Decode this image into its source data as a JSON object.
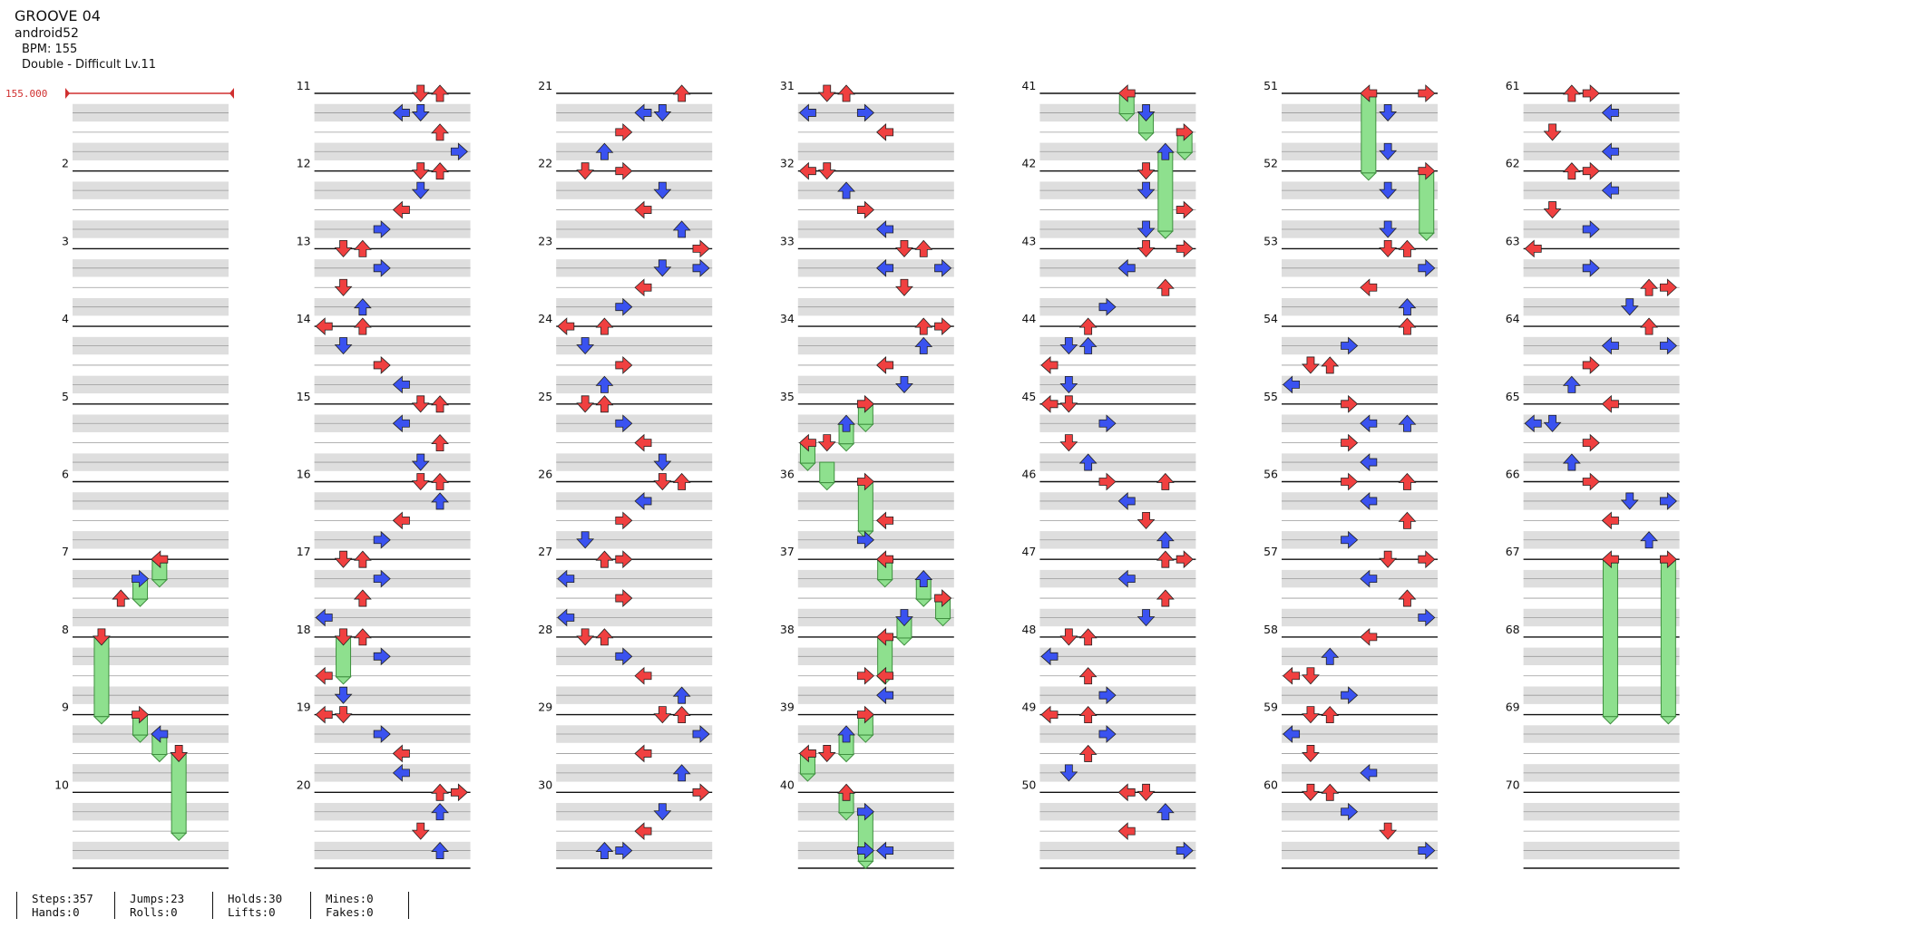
{
  "header": {
    "title": "GROOVE 04",
    "credit": "android52",
    "bpm": "BPM: 155",
    "difficulty": "Double - Difficult Lv.11"
  },
  "bpm_marker": "155.000",
  "measures_per_column": 10,
  "column_count": 7,
  "colors": {
    "red_arrow": "#f04040",
    "blue_arrow": "#3a52f0",
    "hold_fill": "#8ee08e",
    "band": "#dedede",
    "bpm_marker": "#d03030"
  },
  "arrow_icons": [
    "left-arrow-icon",
    "down-arrow-icon",
    "up-arrow-icon",
    "right-arrow-icon"
  ],
  "stats": [
    {
      "line1": "Steps:357",
      "line2": "Hands:0"
    },
    {
      "line1": "Jumps:23",
      "line2": "Rolls:0"
    },
    {
      "line1": "Holds:30",
      "line2": "Lifts:0"
    },
    {
      "line1": "Mines:0",
      "line2": "Fakes:0"
    }
  ],
  "notes": [
    {
      "m": 7,
      "b": 0,
      "l": 4
    },
    {
      "m": 7,
      "b": 1,
      "l": 3
    },
    {
      "m": 7,
      "b": 2,
      "l": 2
    },
    {
      "m": 8,
      "b": 0,
      "l": 1
    },
    {
      "m": 9,
      "b": 0,
      "l": 3
    },
    {
      "m": 9,
      "b": 1,
      "l": 4
    },
    {
      "m": 9,
      "b": 2,
      "l": 5
    },
    {
      "m": 11,
      "b": 0,
      "l": 5
    },
    {
      "m": 11,
      "b": 0,
      "l": 6
    },
    {
      "m": 11,
      "b": 1,
      "l": 4
    },
    {
      "m": 11,
      "b": 1,
      "l": 5
    },
    {
      "m": 11,
      "b": 2,
      "l": 6
    },
    {
      "m": 11,
      "b": 3,
      "l": 7
    },
    {
      "m": 12,
      "b": 0,
      "l": 5
    },
    {
      "m": 12,
      "b": 0,
      "l": 6
    },
    {
      "m": 12,
      "b": 1,
      "l": 5
    },
    {
      "m": 12,
      "b": 2,
      "l": 4
    },
    {
      "m": 12,
      "b": 3,
      "l": 3
    },
    {
      "m": 13,
      "b": 0,
      "l": 1
    },
    {
      "m": 13,
      "b": 0,
      "l": 2
    },
    {
      "m": 13,
      "b": 1,
      "l": 3
    },
    {
      "m": 13,
      "b": 2,
      "l": 1
    },
    {
      "m": 13,
      "b": 3,
      "l": 2
    },
    {
      "m": 14,
      "b": 0,
      "l": 0
    },
    {
      "m": 14,
      "b": 0,
      "l": 2
    },
    {
      "m": 14,
      "b": 1,
      "l": 1
    },
    {
      "m": 14,
      "b": 2,
      "l": 3
    },
    {
      "m": 14,
      "b": 3,
      "l": 4
    },
    {
      "m": 15,
      "b": 0,
      "l": 5
    },
    {
      "m": 15,
      "b": 0,
      "l": 6
    },
    {
      "m": 15,
      "b": 1,
      "l": 4
    },
    {
      "m": 15,
      "b": 2,
      "l": 6
    },
    {
      "m": 15,
      "b": 3,
      "l": 5
    },
    {
      "m": 16,
      "b": 0,
      "l": 5
    },
    {
      "m": 16,
      "b": 0,
      "l": 6
    },
    {
      "m": 16,
      "b": 1,
      "l": 6
    },
    {
      "m": 16,
      "b": 2,
      "l": 4
    },
    {
      "m": 16,
      "b": 3,
      "l": 3
    },
    {
      "m": 17,
      "b": 0,
      "l": 1
    },
    {
      "m": 17,
      "b": 0,
      "l": 2
    },
    {
      "m": 17,
      "b": 1,
      "l": 3
    },
    {
      "m": 17,
      "b": 2,
      "l": 2
    },
    {
      "m": 17,
      "b": 3,
      "l": 0
    },
    {
      "m": 18,
      "b": 0,
      "l": 1
    },
    {
      "m": 18,
      "b": 0,
      "l": 2
    },
    {
      "m": 18,
      "b": 1,
      "l": 3
    },
    {
      "m": 18,
      "b": 2,
      "l": 0
    },
    {
      "m": 18,
      "b": 3,
      "l": 1
    },
    {
      "m": 19,
      "b": 0,
      "l": 0
    },
    {
      "m": 19,
      "b": 0,
      "l": 1
    },
    {
      "m": 19,
      "b": 1,
      "l": 3
    },
    {
      "m": 19,
      "b": 2,
      "l": 4
    },
    {
      "m": 19,
      "b": 3,
      "l": 4
    },
    {
      "m": 20,
      "b": 0,
      "l": 6
    },
    {
      "m": 20,
      "b": 0,
      "l": 7
    },
    {
      "m": 20,
      "b": 1,
      "l": 6
    },
    {
      "m": 20,
      "b": 2,
      "l": 5
    },
    {
      "m": 20,
      "b": 3,
      "l": 6
    },
    {
      "m": 21,
      "b": 0,
      "l": 6
    },
    {
      "m": 21,
      "b": 1,
      "l": 4
    },
    {
      "m": 21,
      "b": 1,
      "l": 5
    },
    {
      "m": 21,
      "b": 2,
      "l": 3
    },
    {
      "m": 21,
      "b": 3,
      "l": 2
    },
    {
      "m": 22,
      "b": 0,
      "l": 1
    },
    {
      "m": 22,
      "b": 0,
      "l": 3
    },
    {
      "m": 22,
      "b": 1,
      "l": 5
    },
    {
      "m": 22,
      "b": 2,
      "l": 4
    },
    {
      "m": 22,
      "b": 3,
      "l": 6
    },
    {
      "m": 23,
      "b": 0,
      "l": 7
    },
    {
      "m": 23,
      "b": 1,
      "l": 5
    },
    {
      "m": 23,
      "b": 1,
      "l": 7
    },
    {
      "m": 23,
      "b": 2,
      "l": 4
    },
    {
      "m": 23,
      "b": 3,
      "l": 3
    },
    {
      "m": 24,
      "b": 0,
      "l": 0
    },
    {
      "m": 24,
      "b": 0,
      "l": 2
    },
    {
      "m": 24,
      "b": 1,
      "l": 1
    },
    {
      "m": 24,
      "b": 2,
      "l": 3
    },
    {
      "m": 24,
      "b": 3,
      "l": 2
    },
    {
      "m": 25,
      "b": 0,
      "l": 1
    },
    {
      "m": 25,
      "b": 0,
      "l": 2
    },
    {
      "m": 25,
      "b": 1,
      "l": 3
    },
    {
      "m": 25,
      "b": 2,
      "l": 4
    },
    {
      "m": 25,
      "b": 3,
      "l": 5
    },
    {
      "m": 26,
      "b": 0,
      "l": 5
    },
    {
      "m": 26,
      "b": 0,
      "l": 6
    },
    {
      "m": 26,
      "b": 1,
      "l": 4
    },
    {
      "m": 26,
      "b": 2,
      "l": 3
    },
    {
      "m": 26,
      "b": 3,
      "l": 1
    },
    {
      "m": 27,
      "b": 0,
      "l": 2
    },
    {
      "m": 27,
      "b": 0,
      "l": 3
    },
    {
      "m": 27,
      "b": 1,
      "l": 0
    },
    {
      "m": 27,
      "b": 2,
      "l": 3
    },
    {
      "m": 27,
      "b": 3,
      "l": 0
    },
    {
      "m": 28,
      "b": 0,
      "l": 1
    },
    {
      "m": 28,
      "b": 0,
      "l": 2
    },
    {
      "m": 28,
      "b": 1,
      "l": 3
    },
    {
      "m": 28,
      "b": 2,
      "l": 4
    },
    {
      "m": 28,
      "b": 3,
      "l": 6
    },
    {
      "m": 29,
      "b": 0,
      "l": 5
    },
    {
      "m": 29,
      "b": 0,
      "l": 6
    },
    {
      "m": 29,
      "b": 1,
      "l": 7
    },
    {
      "m": 29,
      "b": 2,
      "l": 4
    },
    {
      "m": 29,
      "b": 3,
      "l": 6
    },
    {
      "m": 30,
      "b": 0,
      "l": 7
    },
    {
      "m": 30,
      "b": 1,
      "l": 5
    },
    {
      "m": 30,
      "b": 2,
      "l": 4
    },
    {
      "m": 30,
      "b": 3,
      "l": 3
    },
    {
      "m": 30,
      "b": 3,
      "l": 2
    },
    {
      "m": 31,
      "b": 0,
      "l": 1
    },
    {
      "m": 31,
      "b": 0,
      "l": 2
    },
    {
      "m": 31,
      "b": 1,
      "l": 0
    },
    {
      "m": 31,
      "b": 1,
      "l": 3
    },
    {
      "m": 31,
      "b": 2,
      "l": 4
    },
    {
      "m": 32,
      "b": 0,
      "l": 0
    },
    {
      "m": 32,
      "b": 0,
      "l": 1
    },
    {
      "m": 32,
      "b": 1,
      "l": 2
    },
    {
      "m": 32,
      "b": 2,
      "l": 3
    },
    {
      "m": 32,
      "b": 3,
      "l": 4
    },
    {
      "m": 33,
      "b": 0,
      "l": 5
    },
    {
      "m": 33,
      "b": 0,
      "l": 6
    },
    {
      "m": 33,
      "b": 1,
      "l": 4
    },
    {
      "m": 33,
      "b": 1,
      "l": 7
    },
    {
      "m": 33,
      "b": 2,
      "l": 5
    },
    {
      "m": 34,
      "b": 0,
      "l": 6
    },
    {
      "m": 34,
      "b": 0,
      "l": 7
    },
    {
      "m": 34,
      "b": 1,
      "l": 6
    },
    {
      "m": 34,
      "b": 2,
      "l": 4
    },
    {
      "m": 34,
      "b": 3,
      "l": 5
    },
    {
      "m": 35,
      "b": 0,
      "l": 3
    },
    {
      "m": 35,
      "b": 1,
      "l": 2
    },
    {
      "m": 35,
      "b": 2,
      "l": 0
    },
    {
      "m": 35,
      "b": 2,
      "l": 1
    },
    {
      "m": 36,
      "b": 0,
      "l": 3
    },
    {
      "m": 36,
      "b": 2,
      "l": 4
    },
    {
      "m": 36,
      "b": 3,
      "l": 3
    },
    {
      "m": 37,
      "b": 0,
      "l": 4
    },
    {
      "m": 37,
      "b": 1,
      "l": 6
    },
    {
      "m": 37,
      "b": 2,
      "l": 7
    },
    {
      "m": 37,
      "b": 3,
      "l": 5
    },
    {
      "m": 38,
      "b": 0,
      "l": 4
    },
    {
      "m": 38,
      "b": 2,
      "l": 3
    },
    {
      "m": 38,
      "b": 2,
      "l": 4
    },
    {
      "m": 38,
      "b": 3,
      "l": 4
    },
    {
      "m": 39,
      "b": 0,
      "l": 3
    },
    {
      "m": 39,
      "b": 1,
      "l": 2
    },
    {
      "m": 39,
      "b": 2,
      "l": 0
    },
    {
      "m": 39,
      "b": 2,
      "l": 1
    },
    {
      "m": 40,
      "b": 0,
      "l": 2
    },
    {
      "m": 40,
      "b": 1,
      "l": 3
    },
    {
      "m": 40,
      "b": 3,
      "l": 4
    },
    {
      "m": 40,
      "b": 3,
      "l": 3
    },
    {
      "m": 41,
      "b": 0,
      "l": 4
    },
    {
      "m": 41,
      "b": 1,
      "l": 5
    },
    {
      "m": 41,
      "b": 2,
      "l": 7
    },
    {
      "m": 41,
      "b": 3,
      "l": 6
    },
    {
      "m": 42,
      "b": 0,
      "l": 5
    },
    {
      "m": 42,
      "b": 1,
      "l": 5
    },
    {
      "m": 42,
      "b": 2,
      "l": 7
    },
    {
      "m": 42,
      "b": 3,
      "l": 5
    },
    {
      "m": 43,
      "b": 0,
      "l": 5
    },
    {
      "m": 43,
      "b": 0,
      "l": 7
    },
    {
      "m": 43,
      "b": 1,
      "l": 4
    },
    {
      "m": 43,
      "b": 2,
      "l": 6
    },
    {
      "m": 43,
      "b": 3,
      "l": 3
    },
    {
      "m": 44,
      "b": 0,
      "l": 2
    },
    {
      "m": 44,
      "b": 1,
      "l": 1
    },
    {
      "m": 44,
      "b": 1,
      "l": 2
    },
    {
      "m": 44,
      "b": 2,
      "l": 0
    },
    {
      "m": 44,
      "b": 3,
      "l": 1
    },
    {
      "m": 45,
      "b": 0,
      "l": 0
    },
    {
      "m": 45,
      "b": 0,
      "l": 1
    },
    {
      "m": 45,
      "b": 1,
      "l": 3
    },
    {
      "m": 45,
      "b": 2,
      "l": 1
    },
    {
      "m": 45,
      "b": 3,
      "l": 2
    },
    {
      "m": 46,
      "b": 0,
      "l": 6
    },
    {
      "m": 46,
      "b": 0,
      "l": 3
    },
    {
      "m": 46,
      "b": 1,
      "l": 4
    },
    {
      "m": 46,
      "b": 2,
      "l": 5
    },
    {
      "m": 46,
      "b": 3,
      "l": 6
    },
    {
      "m": 47,
      "b": 0,
      "l": 6
    },
    {
      "m": 47,
      "b": 0,
      "l": 7
    },
    {
      "m": 47,
      "b": 1,
      "l": 4
    },
    {
      "m": 47,
      "b": 2,
      "l": 6
    },
    {
      "m": 47,
      "b": 3,
      "l": 5
    },
    {
      "m": 48,
      "b": 0,
      "l": 1
    },
    {
      "m": 48,
      "b": 0,
      "l": 2
    },
    {
      "m": 48,
      "b": 1,
      "l": 0
    },
    {
      "m": 48,
      "b": 2,
      "l": 2
    },
    {
      "m": 48,
      "b": 3,
      "l": 3
    },
    {
      "m": 49,
      "b": 0,
      "l": 0
    },
    {
      "m": 49,
      "b": 0,
      "l": 2
    },
    {
      "m": 49,
      "b": 1,
      "l": 3
    },
    {
      "m": 49,
      "b": 2,
      "l": 2
    },
    {
      "m": 49,
      "b": 3,
      "l": 1
    },
    {
      "m": 50,
      "b": 0,
      "l": 4
    },
    {
      "m": 50,
      "b": 0,
      "l": 5
    },
    {
      "m": 50,
      "b": 1,
      "l": 6
    },
    {
      "m": 50,
      "b": 2,
      "l": 4
    },
    {
      "m": 50,
      "b": 3,
      "l": 7
    },
    {
      "m": 51,
      "b": 0,
      "l": 4
    },
    {
      "m": 51,
      "b": 0,
      "l": 7
    },
    {
      "m": 51,
      "b": 1,
      "l": 5
    },
    {
      "m": 51,
      "b": 3,
      "l": 5
    },
    {
      "m": 52,
      "b": 0,
      "l": 7
    },
    {
      "m": 52,
      "b": 1,
      "l": 5
    },
    {
      "m": 52,
      "b": 3,
      "l": 5
    },
    {
      "m": 53,
      "b": 0,
      "l": 5
    },
    {
      "m": 53,
      "b": 0,
      "l": 6
    },
    {
      "m": 53,
      "b": 1,
      "l": 7
    },
    {
      "m": 53,
      "b": 2,
      "l": 4
    },
    {
      "m": 53,
      "b": 3,
      "l": 6
    },
    {
      "m": 54,
      "b": 0,
      "l": 6
    },
    {
      "m": 54,
      "b": 1,
      "l": 3
    },
    {
      "m": 54,
      "b": 2,
      "l": 1
    },
    {
      "m": 54,
      "b": 2,
      "l": 2
    },
    {
      "m": 54,
      "b": 3,
      "l": 0
    },
    {
      "m": 55,
      "b": 0,
      "l": 3
    },
    {
      "m": 55,
      "b": 1,
      "l": 4
    },
    {
      "m": 55,
      "b": 1,
      "l": 6
    },
    {
      "m": 55,
      "b": 2,
      "l": 3
    },
    {
      "m": 55,
      "b": 3,
      "l": 4
    },
    {
      "m": 56,
      "b": 0,
      "l": 3
    },
    {
      "m": 56,
      "b": 0,
      "l": 6
    },
    {
      "m": 56,
      "b": 1,
      "l": 4
    },
    {
      "m": 56,
      "b": 2,
      "l": 6
    },
    {
      "m": 56,
      "b": 3,
      "l": 3
    },
    {
      "m": 57,
      "b": 0,
      "l": 7
    },
    {
      "m": 57,
      "b": 0,
      "l": 5
    },
    {
      "m": 57,
      "b": 1,
      "l": 4
    },
    {
      "m": 57,
      "b": 2,
      "l": 6
    },
    {
      "m": 57,
      "b": 3,
      "l": 7
    },
    {
      "m": 58,
      "b": 0,
      "l": 4
    },
    {
      "m": 58,
      "b": 1,
      "l": 2
    },
    {
      "m": 58,
      "b": 2,
      "l": 0
    },
    {
      "m": 58,
      "b": 2,
      "l": 1
    },
    {
      "m": 58,
      "b": 3,
      "l": 3
    },
    {
      "m": 59,
      "b": 0,
      "l": 1
    },
    {
      "m": 59,
      "b": 0,
      "l": 2
    },
    {
      "m": 59,
      "b": 1,
      "l": 0
    },
    {
      "m": 59,
      "b": 2,
      "l": 1
    },
    {
      "m": 59,
      "b": 3,
      "l": 4
    },
    {
      "m": 60,
      "b": 0,
      "l": 1
    },
    {
      "m": 60,
      "b": 0,
      "l": 2
    },
    {
      "m": 60,
      "b": 1,
      "l": 3
    },
    {
      "m": 60,
      "b": 2,
      "l": 5
    },
    {
      "m": 60,
      "b": 3,
      "l": 7
    },
    {
      "m": 61,
      "b": 0,
      "l": 2
    },
    {
      "m": 61,
      "b": 0,
      "l": 3
    },
    {
      "m": 61,
      "b": 1,
      "l": 4
    },
    {
      "m": 61,
      "b": 2,
      "l": 1
    },
    {
      "m": 61,
      "b": 3,
      "l": 4
    },
    {
      "m": 62,
      "b": 0,
      "l": 2
    },
    {
      "m": 62,
      "b": 0,
      "l": 3
    },
    {
      "m": 62,
      "b": 1,
      "l": 4
    },
    {
      "m": 62,
      "b": 2,
      "l": 1
    },
    {
      "m": 62,
      "b": 3,
      "l": 3
    },
    {
      "m": 63,
      "b": 0,
      "l": 0
    },
    {
      "m": 63,
      "b": 1,
      "l": 3
    },
    {
      "m": 63,
      "b": 2,
      "l": 6
    },
    {
      "m": 63,
      "b": 2,
      "l": 7
    },
    {
      "m": 63,
      "b": 3,
      "l": 5
    },
    {
      "m": 64,
      "b": 0,
      "l": 6
    },
    {
      "m": 64,
      "b": 1,
      "l": 4
    },
    {
      "m": 64,
      "b": 1,
      "l": 7
    },
    {
      "m": 64,
      "b": 2,
      "l": 3
    },
    {
      "m": 64,
      "b": 3,
      "l": 2
    },
    {
      "m": 65,
      "b": 0,
      "l": 4
    },
    {
      "m": 65,
      "b": 1,
      "l": 0
    },
    {
      "m": 65,
      "b": 1,
      "l": 1
    },
    {
      "m": 65,
      "b": 2,
      "l": 3
    },
    {
      "m": 65,
      "b": 3,
      "l": 2
    },
    {
      "m": 66,
      "b": 0,
      "l": 3
    },
    {
      "m": 66,
      "b": 1,
      "l": 5
    },
    {
      "m": 66,
      "b": 1,
      "l": 7
    },
    {
      "m": 66,
      "b": 2,
      "l": 4
    },
    {
      "m": 66,
      "b": 3,
      "l": 6
    },
    {
      "m": 67,
      "b": 0,
      "l": 4
    },
    {
      "m": 67,
      "b": 0,
      "l": 7
    }
  ],
  "holds": [
    {
      "m": 7,
      "b": 0,
      "l": 4,
      "len": 1.05
    },
    {
      "m": 7,
      "b": 1,
      "l": 3,
      "len": 1.05
    },
    {
      "m": 8,
      "b": 0,
      "l": 1,
      "len": 4.1
    },
    {
      "m": 9,
      "b": 0,
      "l": 3,
      "len": 1.05
    },
    {
      "m": 9,
      "b": 1,
      "l": 4,
      "len": 1.05
    },
    {
      "m": 9,
      "b": 2,
      "l": 5,
      "len": 4.1
    },
    {
      "m": 18,
      "b": 0,
      "l": 1,
      "len": 2.05
    },
    {
      "m": 35,
      "b": 0,
      "l": 3,
      "len": 1.05
    },
    {
      "m": 35,
      "b": 1,
      "l": 2,
      "len": 1.05
    },
    {
      "m": 35,
      "b": 2,
      "l": 0,
      "len": 1.05
    },
    {
      "m": 35,
      "b": 3,
      "l": 1,
      "len": 1.05
    },
    {
      "m": 36,
      "b": 0,
      "l": 3,
      "len": 2.55
    },
    {
      "m": 37,
      "b": 0,
      "l": 4,
      "len": 1.05
    },
    {
      "m": 37,
      "b": 1,
      "l": 6,
      "len": 1.05
    },
    {
      "m": 37,
      "b": 2,
      "l": 7,
      "len": 1.05
    },
    {
      "m": 37,
      "b": 3,
      "l": 5,
      "len": 1.05
    },
    {
      "m": 38,
      "b": 0,
      "l": 4,
      "len": 2.05
    },
    {
      "m": 39,
      "b": 0,
      "l": 3,
      "len": 1.05
    },
    {
      "m": 39,
      "b": 1,
      "l": 2,
      "len": 1.05
    },
    {
      "m": 39,
      "b": 2,
      "l": 0,
      "len": 1.05
    },
    {
      "m": 40,
      "b": 0,
      "l": 2,
      "len": 1.05
    },
    {
      "m": 40,
      "b": 1,
      "l": 3,
      "len": 2.55
    },
    {
      "m": 41,
      "b": 0,
      "l": 4,
      "len": 1.05
    },
    {
      "m": 41,
      "b": 1,
      "l": 5,
      "len": 1.05
    },
    {
      "m": 41,
      "b": 2,
      "l": 7,
      "len": 1.05
    },
    {
      "m": 41,
      "b": 3,
      "l": 6,
      "len": 4.1
    },
    {
      "m": 51,
      "b": 0,
      "l": 4,
      "len": 4.1
    },
    {
      "m": 52,
      "b": 0,
      "l": 7,
      "len": 3.2
    },
    {
      "m": 67,
      "b": 0,
      "l": 4,
      "len": 8.1
    },
    {
      "m": 67,
      "b": 0,
      "l": 7,
      "len": 8.1
    }
  ]
}
